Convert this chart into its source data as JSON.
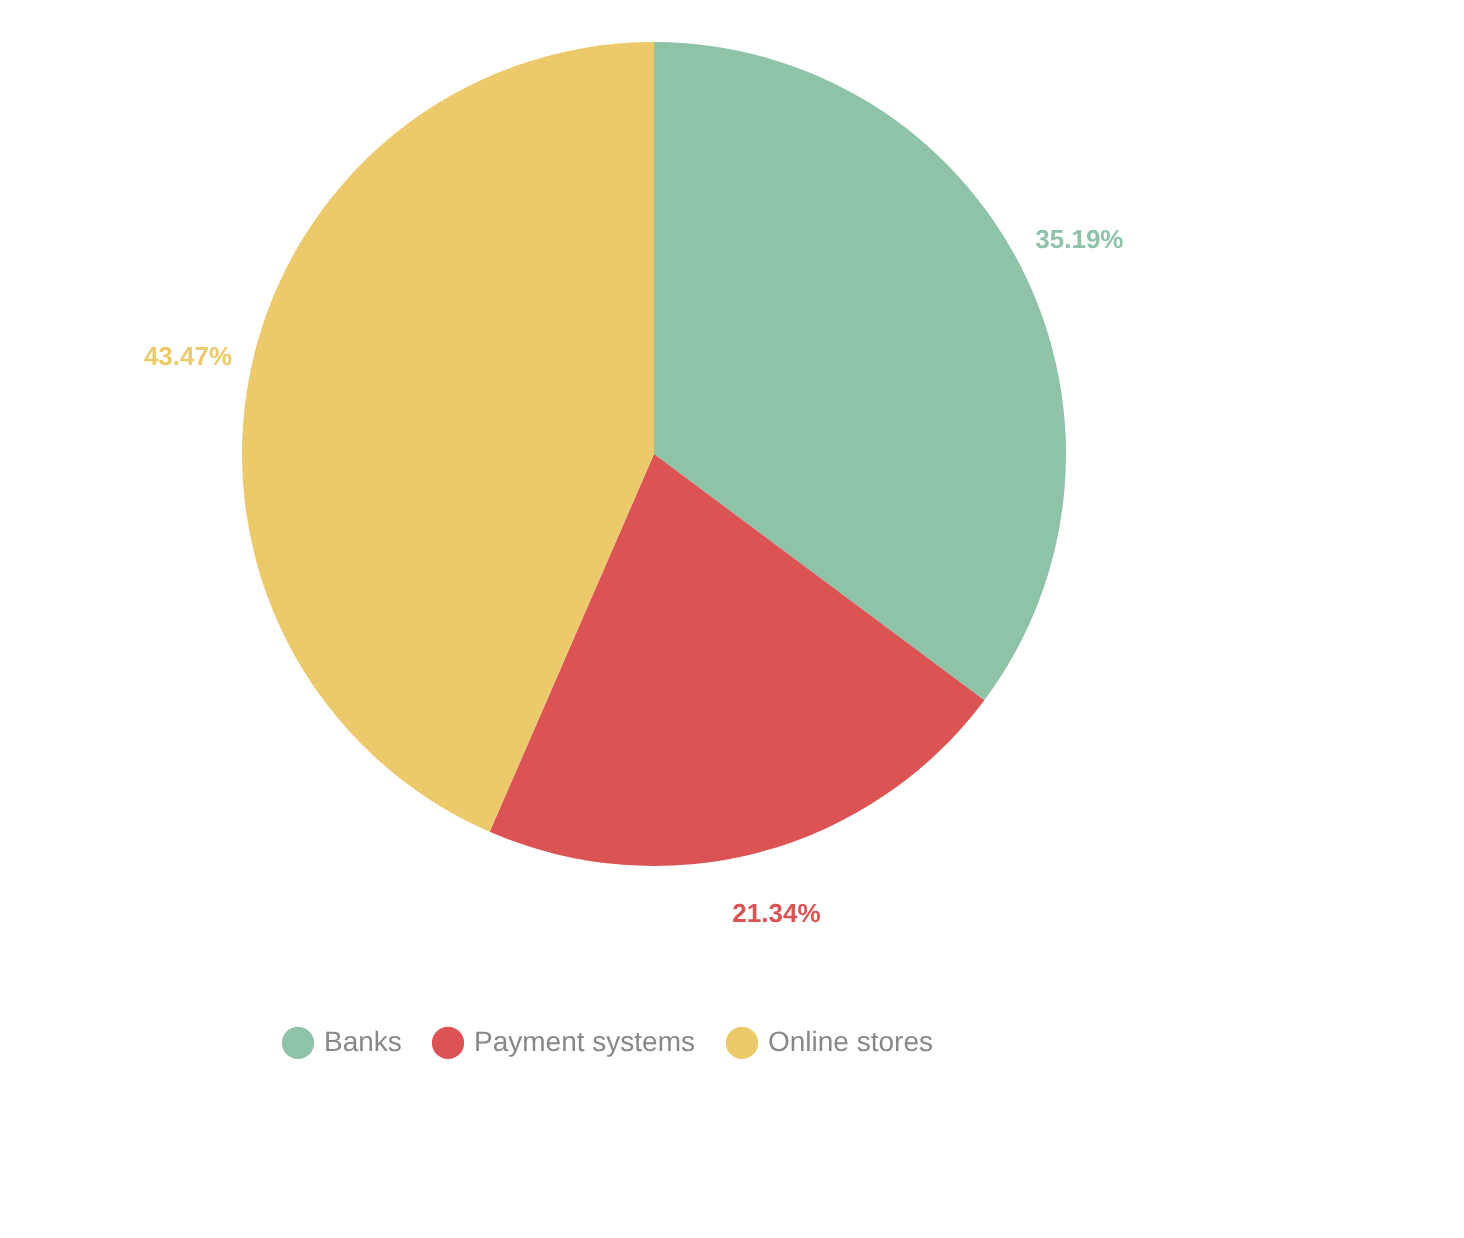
{
  "chart_data": {
    "type": "pie",
    "categories": [
      "Banks",
      "Payment systems",
      "Online stores"
    ],
    "values": [
      35.19,
      21.34,
      43.47
    ],
    "colors": [
      "#8fc3a7",
      "#dc5353",
      "#ecc96a"
    ],
    "value_labels": [
      "35.19%",
      "21.34%",
      "43.47%"
    ],
    "legend": "bottom"
  }
}
